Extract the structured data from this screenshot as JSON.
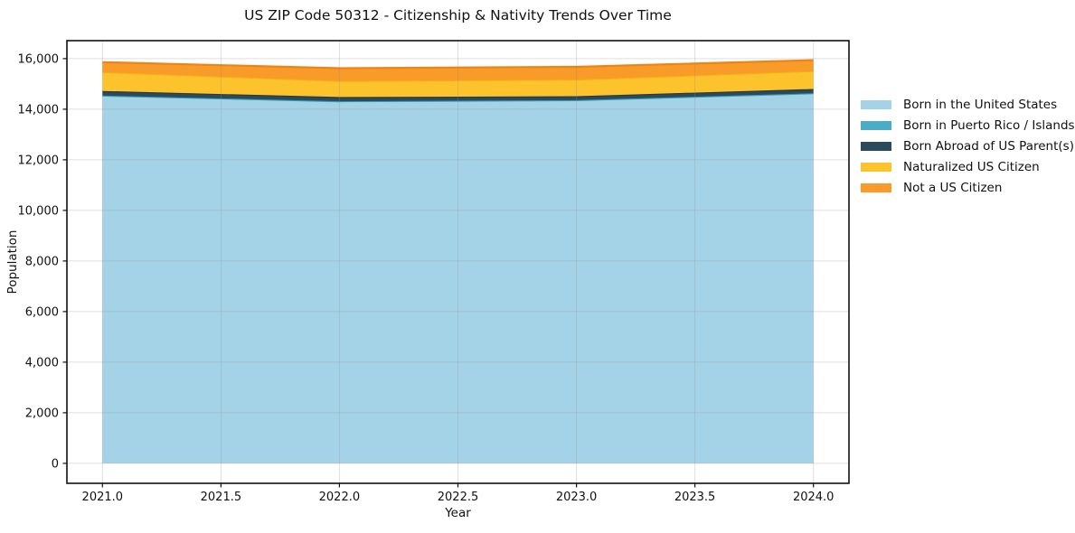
{
  "title": "US ZIP Code 50312 - Citizenship & Nativity Trends Over Time",
  "chart_data": {
    "type": "area",
    "stacked": true,
    "title": "US ZIP Code 50312 - Citizenship & Nativity Trends Over Time",
    "xlabel": "Year",
    "ylabel": "Population",
    "x": [
      2021,
      2022,
      2023,
      2024
    ],
    "series": [
      {
        "name": "Born in the United States",
        "values": [
          14510,
          14290,
          14330,
          14600
        ],
        "fill": "#a4d3e8",
        "edge": null
      },
      {
        "name": "Born in Puerto Rico / Islands",
        "values": [
          30,
          25,
          25,
          30
        ],
        "fill": "#4bacc6",
        "edge": "#3d9cb5"
      },
      {
        "name": "Born Abroad of US Parent(s)",
        "values": [
          180,
          165,
          160,
          170
        ],
        "fill": "#2b4a5e",
        "edge": "#203a4a"
      },
      {
        "name": "Naturalized US Citizen",
        "values": [
          750,
          640,
          660,
          710
        ],
        "fill": "#fdc32d",
        "edge": "#f5ad17"
      },
      {
        "name": "Not a US Citizen",
        "values": [
          390,
          500,
          500,
          430
        ],
        "fill": "#f89b28",
        "edge": "#ee8414"
      }
    ],
    "xlim": [
      2020.85,
      2024.15
    ],
    "ylim": [
      -790,
      16710
    ],
    "xticks": [
      2021.0,
      2021.5,
      2022.0,
      2022.5,
      2023.0,
      2023.5,
      2024.0
    ],
    "xtick_labels": [
      "2021.0",
      "2021.5",
      "2022.0",
      "2022.5",
      "2023.0",
      "2023.5",
      "2024.0"
    ],
    "yticks": [
      0,
      2000,
      4000,
      6000,
      8000,
      10000,
      12000,
      14000,
      16000
    ],
    "ytick_labels": [
      "0",
      "2,000",
      "4,000",
      "6,000",
      "8,000",
      "10,000",
      "12,000",
      "14,000",
      "16,000"
    ],
    "grid": true,
    "legend_position": "outside-right-top",
    "colors": {
      "grid": "#8c8c8c",
      "spine": "#111111",
      "tick_text": "#111111"
    }
  }
}
